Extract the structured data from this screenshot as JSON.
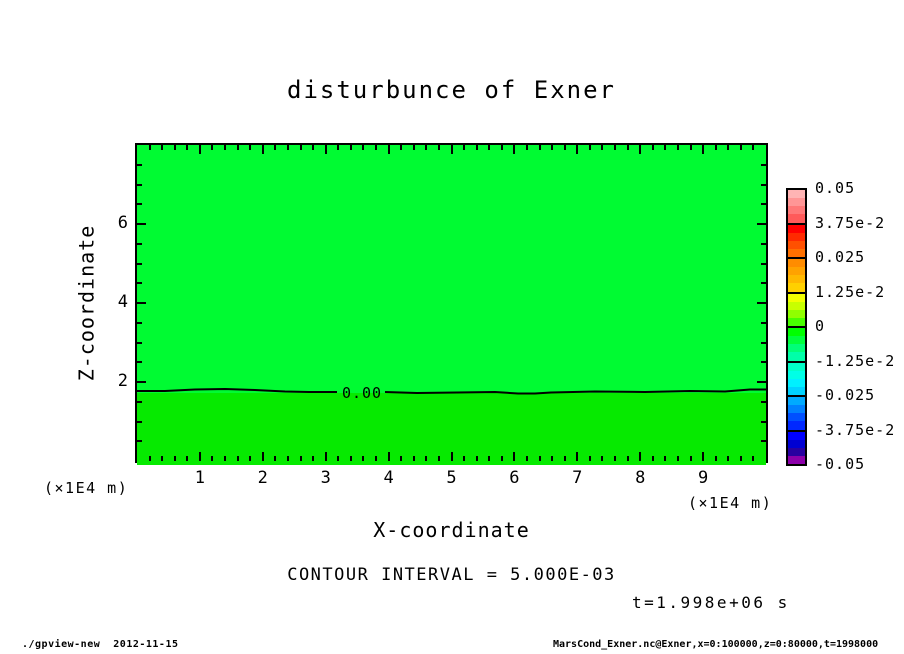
{
  "colors": {
    "background": "#ffffff",
    "axis": "#000000",
    "fill_above_zero": "#00fb32",
    "fill_below_zero": "#06ea00"
  },
  "figure": {
    "title": "disturbunce of Exner",
    "xlabel": "X-coordinate",
    "ylabel": "Z-coordinate",
    "x_unit_left": "(×1E4 m)",
    "x_unit_right": "(×1E4 m)",
    "contour_note": "CONTOUR INTERVAL = 5.000E-03",
    "time_label": "t=1.998e+06 s",
    "contour_label": "0.00"
  },
  "footer": {
    "left": "./gpview-new  2012-11-15",
    "right": "MarsCond_Exner.nc@Exner,x=0:100000,z=0:80000,t=1998000"
  },
  "chart_data": {
    "type": "contour",
    "title": "disturbunce of Exner",
    "xlabel": "X-coordinate",
    "ylabel": "Z-coordinate",
    "x_unit": "×1E4 m",
    "y_unit": "×1E4 m",
    "xlim": [
      0,
      10
    ],
    "ylim": [
      0,
      8
    ],
    "x_ticks_major": [
      1,
      2,
      3,
      4,
      5,
      6,
      7,
      8,
      9
    ],
    "x_tick_minor_step": 0.2,
    "y_ticks_major": [
      2,
      4,
      6
    ],
    "y_tick_minor_step": 0.5,
    "grid": false,
    "contour_interval": 0.005,
    "contour_lines": [
      {
        "level": 0,
        "label": "0.00",
        "z_approx": 1.8
      }
    ],
    "field_summary": "Exner function disturbance is ~0 over the whole domain: slightly positive above the 0.00 contour at z≈1.8 (×1E4 m), slightly negative below it",
    "time": "t=1.998e+06 s",
    "colorbar": {
      "position": "right",
      "labels": [
        "0.05",
        "3.75e-2",
        "0.025",
        "1.25e-2",
        "0",
        "-1.25e-2",
        "-0.025",
        "-3.75e-2",
        "-0.05"
      ],
      "segments": [
        [
          "#ffb4b4",
          "#ff9696",
          "#ff7878",
          "#ff5a5a"
        ],
        [
          "#ff0000",
          "#ff2a00",
          "#ff5000",
          "#ff7000"
        ],
        [
          "#ff8c00",
          "#ffa200",
          "#ffb800",
          "#ffd000"
        ],
        [
          "#f2ff00",
          "#c8ff00",
          "#90ff00",
          "#48ff00"
        ],
        [
          "#00ff00",
          "#00ff3c",
          "#00ff78",
          "#00ffa8"
        ],
        [
          "#00ffc8",
          "#00ffe6",
          "#00f0ff",
          "#00d2ff"
        ],
        [
          "#00aaff",
          "#0080ff",
          "#0050ff",
          "#0028ff"
        ],
        [
          "#0000ff",
          "#0000d2",
          "#2800a0",
          "#8c00aa"
        ]
      ]
    }
  }
}
